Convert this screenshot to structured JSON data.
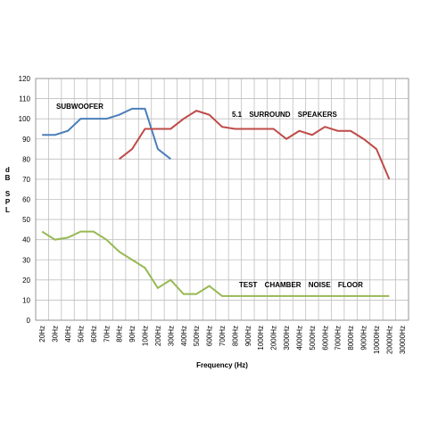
{
  "chart_data": {
    "type": "line",
    "y_label": "dB SPL",
    "x_label": "Frequency (Hz)",
    "categories": [
      "20Hz",
      "30Hz",
      "40Hz",
      "50Hz",
      "60Hz",
      "70Hz",
      "80Hz",
      "90Hz",
      "100Hz",
      "200Hz",
      "300Hz",
      "400Hz",
      "500Hz",
      "600Hz",
      "700Hz",
      "800Hz",
      "900Hz",
      "1000Hz",
      "2000Hz",
      "3000Hz",
      "4000Hz",
      "5000Hz",
      "6000Hz",
      "7000Hz",
      "8000Hz",
      "9000Hz",
      "10000Hz",
      "20000Hz",
      "30000Hz"
    ],
    "series": [
      {
        "name": "SUBWOOFER",
        "color": "#4a7ebb",
        "values": [
          92,
          92,
          94,
          100,
          100,
          100,
          102,
          105,
          105,
          85,
          80,
          null,
          null,
          null,
          null,
          null,
          null,
          null,
          null,
          null,
          null,
          null,
          null,
          null,
          null,
          null,
          null,
          null,
          null
        ]
      },
      {
        "name": "5.1 SURROUND SPEAKERS",
        "color": "#be4b48",
        "values": [
          null,
          null,
          null,
          null,
          null,
          null,
          80,
          85,
          95,
          95,
          95,
          100,
          104,
          102,
          96,
          95,
          95,
          95,
          95,
          90,
          94,
          92,
          96,
          94,
          94,
          90,
          85,
          70,
          null
        ]
      },
      {
        "name": "TEST CHAMBER NOISE FLOOR",
        "color": "#98b954",
        "values": [
          44,
          40,
          41,
          44,
          44,
          40,
          34,
          30,
          26,
          16,
          20,
          13,
          13,
          17,
          12,
          12,
          12,
          12,
          12,
          12,
          12,
          12,
          12,
          12,
          12,
          12,
          12,
          12,
          null
        ]
      }
    ],
    "ylim": [
      0,
      120
    ],
    "yticks": [
      0,
      10,
      20,
      30,
      40,
      50,
      60,
      70,
      80,
      90,
      100,
      110,
      120
    ],
    "grid": true
  }
}
